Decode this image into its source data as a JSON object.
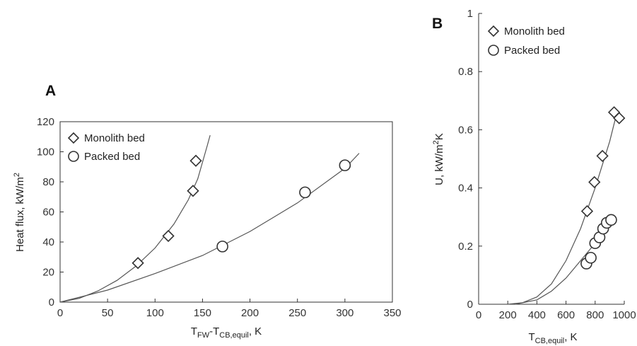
{
  "chart_data": [
    {
      "id": "A",
      "panel_label": "A",
      "type": "scatter",
      "xlabel_parts": {
        "a": "T",
        "a_sub": "FW",
        "b": "-T",
        "b_sub": "CB,equil",
        "c": ", K"
      },
      "ylabel_parts": {
        "a": "Heat flux, kW/m",
        "a_sup": "2"
      },
      "xlim": [
        0,
        350
      ],
      "ylim": [
        0,
        120
      ],
      "xticks": [
        "0",
        "50",
        "100",
        "150",
        "200",
        "250",
        "300",
        "350"
      ],
      "yticks": [
        "0",
        "20",
        "40",
        "60",
        "80",
        "100",
        "120"
      ],
      "grid": false,
      "legend_position": "top-left",
      "series": [
        {
          "name": "Monolith bed",
          "marker": "diamond",
          "points": [
            [
              82,
              26
            ],
            [
              114,
              44
            ],
            [
              140,
              74
            ],
            [
              143,
              94
            ]
          ],
          "fit_curve": [
            [
              0,
              0
            ],
            [
              20,
              2.5
            ],
            [
              40,
              7.5
            ],
            [
              60,
              14.5
            ],
            [
              80,
              24
            ],
            [
              100,
              36
            ],
            [
              120,
              52
            ],
            [
              135,
              68
            ],
            [
              145,
              82
            ],
            [
              155,
              104
            ],
            [
              158,
              111
            ]
          ]
        },
        {
          "name": "Packed bed",
          "marker": "circle",
          "points": [
            [
              171,
              37
            ],
            [
              258,
              73
            ],
            [
              300,
              91
            ]
          ],
          "fit_curve": [
            [
              0,
              0
            ],
            [
              50,
              8
            ],
            [
              100,
              19
            ],
            [
              150,
              31
            ],
            [
              200,
              47
            ],
            [
              250,
              66
            ],
            [
              300,
              89
            ],
            [
              315,
              99
            ]
          ]
        }
      ]
    },
    {
      "id": "B",
      "panel_label": "B",
      "type": "scatter",
      "xlabel_parts": {
        "a": "T",
        "a_sub": "CB,equil",
        "b": ", K"
      },
      "ylabel_parts": {
        "a": "U, kW/m",
        "a_sup": "2",
        "b": "K"
      },
      "xlim": [
        0,
        1000
      ],
      "ylim": [
        0,
        1
      ],
      "xticks": [
        "0",
        "200",
        "400",
        "600",
        "800",
        "1000"
      ],
      "yticks": [
        "0",
        "0.2",
        "0.4",
        "0.6",
        "0.8",
        "1"
      ],
      "grid": false,
      "legend_position": "top-left",
      "series": [
        {
          "name": "Monolith bed",
          "marker": "diamond",
          "points": [
            [
              745,
              0.32
            ],
            [
              795,
              0.42
            ],
            [
              850,
              0.51
            ],
            [
              930,
              0.66
            ],
            [
              965,
              0.64
            ]
          ],
          "fit_curve": [
            [
              200,
              0.0
            ],
            [
              300,
              0.005
            ],
            [
              400,
              0.025
            ],
            [
              500,
              0.07
            ],
            [
              600,
              0.15
            ],
            [
              700,
              0.26
            ],
            [
              800,
              0.4
            ],
            [
              900,
              0.56
            ],
            [
              950,
              0.66
            ]
          ]
        },
        {
          "name": "Packed bed",
          "marker": "circle",
          "points": [
            [
              740,
              0.14
            ],
            [
              770,
              0.16
            ],
            [
              800,
              0.21
            ],
            [
              830,
              0.23
            ],
            [
              855,
              0.26
            ],
            [
              880,
              0.28
            ],
            [
              910,
              0.29
            ]
          ],
          "fit_curve": [
            [
              250,
              0.0
            ],
            [
              400,
              0.015
            ],
            [
              500,
              0.045
            ],
            [
              600,
              0.09
            ],
            [
              700,
              0.15
            ],
            [
              800,
              0.21
            ],
            [
              880,
              0.27
            ],
            [
              910,
              0.29
            ]
          ]
        }
      ]
    }
  ]
}
